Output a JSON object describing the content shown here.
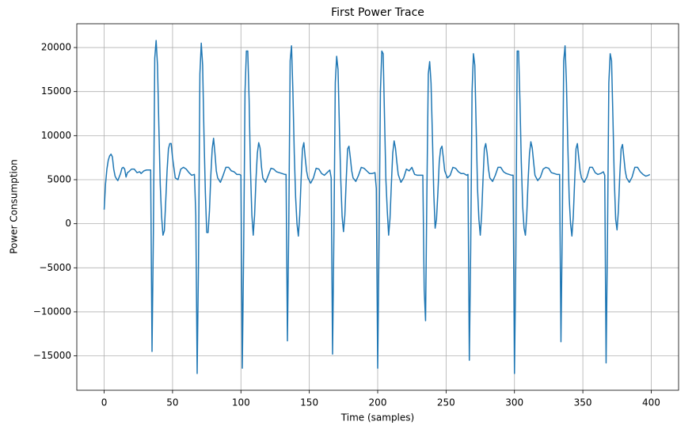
{
  "chart_data": {
    "type": "line",
    "title": "First Power Trace",
    "xlabel": "Time (samples)",
    "ylabel": "Power Consumption",
    "color": "#1f77b4",
    "grid": true,
    "xlim": [
      -20,
      420
    ],
    "ylim": [
      -18900,
      22700
    ],
    "xticks": [
      0,
      50,
      100,
      150,
      200,
      250,
      300,
      350,
      400
    ],
    "yticks": [
      {
        "value": -15000,
        "label": "−15000"
      },
      {
        "value": -10000,
        "label": "−10000"
      },
      {
        "value": -5000,
        "label": "−5000"
      },
      0,
      5000,
      10000,
      15000,
      20000
    ],
    "x": [
      0,
      1,
      2,
      3,
      4,
      5,
      6,
      7,
      8,
      9,
      10,
      11,
      12,
      13,
      14,
      15,
      16,
      17,
      18,
      20,
      22,
      24,
      26,
      27,
      29,
      31,
      33,
      34,
      35,
      36,
      37,
      38,
      39,
      40,
      41,
      42,
      43,
      44,
      45,
      46,
      47,
      48,
      49,
      50,
      52,
      54,
      56,
      58,
      60,
      62,
      64,
      66,
      67,
      68,
      69,
      70,
      71,
      72,
      73,
      74,
      75,
      76,
      77,
      78,
      79,
      80,
      81,
      82,
      83,
      85,
      87,
      89,
      91,
      93,
      95,
      97,
      99,
      100,
      101,
      102,
      103,
      104,
      105,
      106,
      107,
      108,
      109,
      110,
      111,
      112,
      113,
      114,
      115,
      116,
      118,
      120,
      122,
      124,
      126,
      128,
      130,
      132,
      133,
      134,
      135,
      136,
      137,
      138,
      139,
      140,
      141,
      142,
      143,
      144,
      145,
      146,
      147,
      148,
      149,
      151,
      153,
      155,
      157,
      159,
      161,
      163,
      165,
      166,
      167,
      168,
      169,
      170,
      171,
      172,
      173,
      174,
      175,
      176,
      177,
      178,
      179,
      180,
      181,
      182,
      184,
      186,
      188,
      190,
      192,
      194,
      196,
      198,
      199,
      200,
      201,
      202,
      203,
      204,
      205,
      206,
      207,
      208,
      209,
      210,
      211,
      212,
      213,
      214,
      215,
      217,
      219,
      221,
      223,
      225,
      227,
      229,
      231,
      233,
      234,
      235,
      236,
      237,
      238,
      239,
      240,
      241,
      242,
      243,
      244,
      245,
      246,
      247,
      248,
      249,
      251,
      253,
      255,
      257,
      259,
      261,
      263,
      265,
      266,
      267,
      268,
      269,
      270,
      271,
      272,
      273,
      274,
      275,
      276,
      277,
      278,
      279,
      280,
      281,
      282,
      284,
      286,
      288,
      290,
      292,
      294,
      296,
      298,
      299,
      300,
      301,
      302,
      303,
      304,
      305,
      306,
      307,
      308,
      309,
      310,
      311,
      312,
      313,
      314,
      315,
      317,
      319,
      321,
      323,
      325,
      327,
      329,
      331,
      333,
      334,
      335,
      336,
      337,
      338,
      339,
      340,
      341,
      342,
      343,
      344,
      345,
      346,
      347,
      348,
      349,
      351,
      353,
      355,
      357,
      359,
      361,
      363,
      365,
      366,
      367,
      368,
      369,
      370,
      371,
      372,
      373,
      374,
      375,
      376,
      377,
      378,
      379,
      380,
      381,
      382,
      384,
      386,
      388,
      390,
      392,
      394,
      396,
      398,
      399
    ],
    "values": [
      1600,
      4500,
      6200,
      7200,
      7700,
      7900,
      7600,
      6200,
      5400,
      5100,
      4900,
      5300,
      5700,
      6300,
      6400,
      6200,
      5300,
      5800,
      5900,
      6200,
      6200,
      5800,
      5900,
      5700,
      6000,
      6100,
      6100,
      6100,
      -14500,
      -1000,
      18800,
      20800,
      18000,
      11000,
      4500,
      800,
      -1300,
      -800,
      2500,
      6000,
      8500,
      9100,
      9100,
      7500,
      5200,
      5000,
      6200,
      6400,
      6200,
      5800,
      5500,
      5600,
      1000,
      -17000,
      -4000,
      17000,
      20500,
      18000,
      10000,
      3500,
      -1000,
      -1000,
      1500,
      5500,
      8500,
      9700,
      8000,
      6000,
      5200,
      4700,
      5500,
      6400,
      6400,
      6000,
      5900,
      5600,
      5600,
      5500,
      -16400,
      -3000,
      15000,
      19600,
      19600,
      14000,
      6000,
      1000,
      -1300,
      1000,
      5000,
      8000,
      9200,
      8600,
      6500,
      5200,
      4700,
      5500,
      6300,
      6200,
      5900,
      5800,
      5700,
      5600,
      5600,
      -13300,
      0,
      18500,
      20200,
      15000,
      8000,
      3000,
      0,
      -1400,
      1000,
      5000,
      8500,
      9200,
      7500,
      6000,
      5200,
      4600,
      5200,
      6300,
      6200,
      5700,
      5500,
      5800,
      6100,
      5200,
      -14800,
      -1000,
      16000,
      19000,
      17500,
      11000,
      5000,
      800,
      -900,
      1000,
      5000,
      8500,
      8800,
      7500,
      6000,
      5200,
      4800,
      5500,
      6400,
      6300,
      6000,
      5700,
      5700,
      5800,
      4000,
      -16400,
      -2000,
      15000,
      19600,
      19300,
      12000,
      5000,
      1500,
      -1300,
      600,
      4500,
      8000,
      9400,
      8600,
      7000,
      5600,
      4700,
      5200,
      6200,
      6000,
      6400,
      5600,
      5500,
      5500,
      5500,
      -7500,
      -11000,
      4000,
      17000,
      18400,
      16000,
      10000,
      3500,
      -500,
      500,
      3500,
      7000,
      8500,
      8800,
      7500,
      6000,
      5200,
      5500,
      6400,
      6300,
      5900,
      5700,
      5700,
      5500,
      5600,
      -15500,
      -3000,
      15000,
      19300,
      18000,
      11000,
      4000,
      500,
      -1300,
      1000,
      5000,
      8500,
      9100,
      8000,
      6200,
      5200,
      4800,
      5500,
      6400,
      6400,
      5900,
      5700,
      5600,
      5500,
      5500,
      -17000,
      -4000,
      19600,
      19600,
      14000,
      7000,
      2000,
      -500,
      -1300,
      1000,
      5000,
      8000,
      9300,
      8600,
      7000,
      5500,
      4900,
      5300,
      6200,
      6400,
      6300,
      5800,
      5700,
      5600,
      5600,
      -13400,
      0,
      18500,
      20200,
      16000,
      9000,
      3000,
      0,
      -1400,
      800,
      4800,
      8500,
      9100,
      7500,
      6000,
      5200,
      4700,
      5300,
      6400,
      6400,
      5800,
      5600,
      5700,
      5900,
      5500,
      -15800,
      -2000,
      16000,
      19300,
      18500,
      12000,
      5000,
      500,
      -700,
      1500,
      5500,
      8500,
      9000,
      7500,
      6000,
      5200,
      4700,
      5300,
      6400,
      6400,
      5900,
      5600,
      5400,
      5500,
      5600
    ]
  }
}
